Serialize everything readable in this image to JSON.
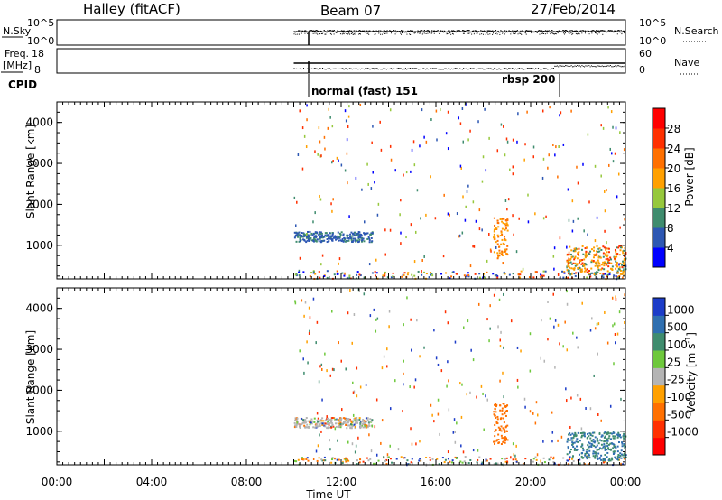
{
  "header": {
    "station": "Halley (fitACF)",
    "beam": "Beam 07",
    "date": "27/Feb/2014"
  },
  "panels": {
    "nsky_label": "N.Sky",
    "nsearch_label": "N.Search",
    "nsky_ticks": [
      "10^5",
      "10^0"
    ],
    "nsearch_ticks": [
      "10^5",
      "10^0"
    ],
    "freq_label": "Freq.",
    "freq_unit": "[MHz]",
    "freq_ticks": [
      "18",
      "8"
    ],
    "nave_label": "Nave",
    "nave_ticks": [
      "60",
      "0"
    ],
    "cpid_label": "CPID",
    "cpid_entries": [
      {
        "label": "normal (fast) 151",
        "start_h": 10.0
      },
      {
        "label": "rbsp 200",
        "start_h": 21.0
      }
    ]
  },
  "chart_data": [
    {
      "type": "heatmap",
      "name": "power",
      "ylabel": "Slant Range [km]",
      "yticks": [
        "1000",
        "2000",
        "3000",
        "4000"
      ],
      "ylim": [
        180,
        4500
      ],
      "xlim_hours": [
        0,
        24
      ],
      "xticks": [
        "00:00",
        "04:00",
        "08:00",
        "12:00",
        "16:00",
        "20:00",
        "00:00"
      ],
      "xlabel": "Time UT",
      "colorbar": {
        "label": "Power [dB]",
        "ticks": [
          "4",
          "8",
          "12",
          "16",
          "20",
          "24",
          "28"
        ],
        "colors": [
          "#0000ff",
          "#2d57b3",
          "#3f8c6e",
          "#96c83c",
          "#ffa000",
          "#ff7000",
          "#ff3000",
          "#ff0000"
        ]
      },
      "features": [
        {
          "desc": "E/F region echo band",
          "t_start_h": 10.0,
          "t_end_h": 13.0,
          "range_km": 1200
        },
        {
          "desc": "sporadic echoes",
          "t_start_h": 10.0,
          "t_end_h": 24.0,
          "range_km": [
            180,
            4500
          ]
        }
      ]
    },
    {
      "type": "heatmap",
      "name": "velocity",
      "ylabel": "Slant Range [km]",
      "yticks": [
        "1000",
        "2000",
        "3000",
        "4000"
      ],
      "ylim": [
        180,
        4500
      ],
      "xlim_hours": [
        0,
        24
      ],
      "xticks": [
        "00:00",
        "04:00",
        "08:00",
        "12:00",
        "16:00",
        "20:00",
        "00:00"
      ],
      "xlabel": "Time UT",
      "colorbar": {
        "label": "Velocity [m s^-1]",
        "ticks": [
          "1000",
          "500",
          "100",
          "25",
          "-25",
          "-100",
          "-500",
          "-1000"
        ],
        "colors": [
          "#1c3cc8",
          "#2f6fb0",
          "#3f8c6e",
          "#6ec83c",
          "#b4b4b4",
          "#ffa000",
          "#ff7000",
          "#ff3000",
          "#ff0000"
        ]
      }
    }
  ]
}
